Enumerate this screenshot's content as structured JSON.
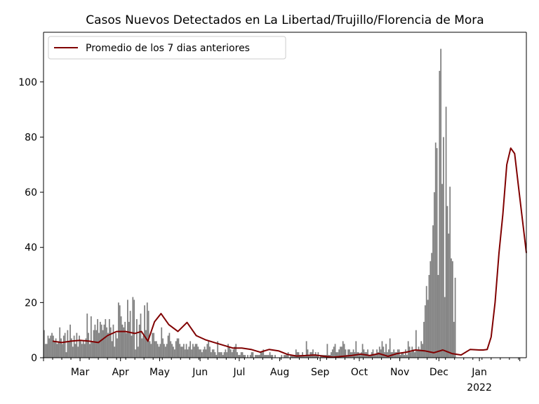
{
  "chart_data": {
    "type": "bar",
    "title": "Casos Nuevos Detectados en La Libertad/Trujillo/Florencia de Mora",
    "xlabel": "",
    "ylabel": "",
    "ylim": [
      0,
      118
    ],
    "yticks": [
      0,
      20,
      40,
      60,
      80,
      100
    ],
    "xtick_labels": [
      "Mar",
      "Apr",
      "May",
      "Jun",
      "Jul",
      "Aug",
      "Sep",
      "Oct",
      "Nov",
      "Dec",
      "Jan"
    ],
    "year_label": "2022",
    "legend": {
      "position": "top-left",
      "line_label": "Promedio de los 7 dias anteriores"
    },
    "grid": false,
    "colors": {
      "bars": "#808080",
      "line": "#800000"
    },
    "x_start": "2021-02-01",
    "x_end": "2022-02-06",
    "daily_cases": {
      "start": "2021-02-01",
      "values": [
        10,
        5,
        5,
        8,
        7,
        8,
        9,
        8,
        6,
        7,
        5,
        6,
        11,
        7,
        5,
        8,
        9,
        2,
        10,
        6,
        12,
        7,
        4,
        8,
        5,
        9,
        4,
        8,
        6,
        5,
        6,
        5,
        7,
        16,
        9,
        5,
        15,
        6,
        10,
        12,
        10,
        14,
        9,
        13,
        12,
        10,
        12,
        14,
        11,
        9,
        14,
        11,
        6,
        12,
        4,
        9,
        7,
        20,
        19,
        15,
        12,
        11,
        13,
        9,
        21,
        13,
        17,
        8,
        22,
        21,
        3,
        14,
        4,
        12,
        16,
        7,
        8,
        19,
        10,
        20,
        17,
        6,
        5,
        9,
        9,
        6,
        6,
        5,
        4,
        5,
        11,
        7,
        5,
        4,
        5,
        8,
        9,
        6,
        5,
        4,
        3,
        6,
        7,
        7,
        5,
        4,
        4,
        5,
        3,
        5,
        3,
        4,
        6,
        3,
        5,
        4,
        5,
        5,
        4,
        3,
        3,
        2,
        3,
        4,
        3,
        5,
        6,
        4,
        2,
        3,
        3,
        2,
        1,
        6,
        2,
        2,
        2,
        1,
        2,
        3,
        2,
        5,
        4,
        3,
        2,
        3,
        4,
        5,
        2,
        1,
        1,
        2,
        2,
        1,
        1,
        0,
        1,
        0,
        1,
        2,
        2,
        0,
        1,
        1,
        1,
        1,
        2,
        2,
        3,
        1,
        1,
        1,
        1,
        2,
        1,
        1,
        0,
        1,
        0,
        0,
        0,
        0,
        1,
        0,
        1,
        1,
        1,
        2,
        0,
        1,
        1,
        1,
        1,
        3,
        2,
        2,
        1,
        1,
        2,
        1,
        1,
        6,
        3,
        1,
        2,
        2,
        3,
        1,
        2,
        1,
        2,
        0,
        1,
        1,
        1,
        1,
        1,
        5,
        1,
        1,
        2,
        3,
        4,
        5,
        2,
        2,
        3,
        4,
        4,
        6,
        5,
        3,
        1,
        3,
        3,
        2,
        2,
        3,
        2,
        6,
        2,
        2,
        1,
        2,
        5,
        3,
        2,
        2,
        3,
        1,
        1,
        2,
        3,
        1,
        1,
        3,
        2,
        4,
        3,
        6,
        4,
        2,
        5,
        2,
        3,
        7,
        2,
        2,
        3,
        2,
        2,
        3,
        3,
        1,
        2,
        2,
        1,
        3,
        1,
        6,
        4,
        2,
        4,
        3,
        2,
        10,
        3,
        4,
        3,
        6,
        5,
        13,
        19,
        26,
        21,
        30,
        35,
        38,
        48,
        60,
        78,
        76,
        30,
        104,
        112,
        63,
        80,
        22,
        91,
        55,
        45,
        62,
        36,
        35,
        13,
        29
      ]
    },
    "moving_avg_7d": {
      "x": [
        "2021-02-08",
        "2021-02-15",
        "2021-02-22",
        "2021-03-01",
        "2021-03-08",
        "2021-03-15",
        "2021-03-22",
        "2021-03-29",
        "2021-04-05",
        "2021-04-12",
        "2021-04-17",
        "2021-04-22",
        "2021-04-27",
        "2021-05-02",
        "2021-05-08",
        "2021-05-15",
        "2021-05-22",
        "2021-05-29",
        "2021-06-05",
        "2021-06-12",
        "2021-06-19",
        "2021-06-26",
        "2021-07-03",
        "2021-07-10",
        "2021-07-17",
        "2021-07-24",
        "2021-07-31",
        "2021-08-07",
        "2021-08-14",
        "2021-08-21",
        "2021-08-28",
        "2021-09-04",
        "2021-09-11",
        "2021-09-18",
        "2021-09-25",
        "2021-10-02",
        "2021-10-09",
        "2021-10-16",
        "2021-10-23",
        "2021-10-30",
        "2021-11-06",
        "2021-11-13",
        "2021-11-20",
        "2021-11-27",
        "2021-12-04",
        "2021-12-11",
        "2021-12-18",
        "2021-12-25",
        "2022-01-01",
        "2022-01-04",
        "2022-01-07",
        "2022-01-10",
        "2022-01-13",
        "2022-01-16",
        "2022-01-19",
        "2022-01-22",
        "2022-01-25",
        "2022-01-28",
        "2022-01-31",
        "2022-02-03",
        "2022-02-06"
      ],
      "y": [
        6,
        5.5,
        6,
        6.3,
        6,
        5.5,
        8,
        9.5,
        9.5,
        8.8,
        9.5,
        6,
        13,
        16,
        12,
        9.5,
        12.8,
        8,
        6.5,
        5.5,
        4.5,
        3.5,
        3.5,
        3,
        2,
        3,
        2.5,
        1.2,
        0.6,
        0.8,
        1,
        0.5,
        0.2,
        0.5,
        0.8,
        1.3,
        0.8,
        1.5,
        0.5,
        1.5,
        2,
        2.8,
        2.5,
        1.8,
        2.8,
        1.5,
        1,
        3,
        2.8,
        2.8,
        3,
        7.5,
        20,
        38,
        52,
        70,
        76,
        74,
        62,
        50,
        38
      ]
    }
  }
}
